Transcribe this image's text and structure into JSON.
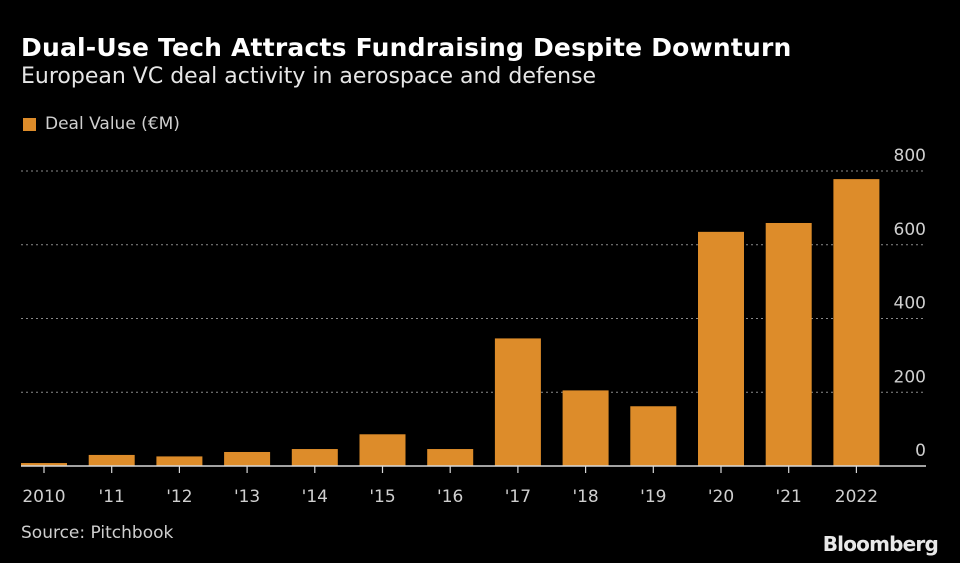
{
  "header": {
    "title": "Dual-Use Tech Attracts Fundraising Despite Downturn",
    "subtitle": "European VC deal activity in aerospace and defense"
  },
  "legend": {
    "label": "Deal Value (€M)",
    "color": "#dd8c2a"
  },
  "footer": {
    "source": "Source: Pitchbook",
    "brand": "Bloomberg"
  },
  "chart_data": {
    "type": "bar",
    "title": "Dual-Use Tech Attracts Fundraising Despite Downturn",
    "subtitle": "European VC deal activity in aerospace and defense",
    "xlabel": "",
    "ylabel": "",
    "categories": [
      "2010",
      "'11",
      "'12",
      "'13",
      "'14",
      "'15",
      "'16",
      "'17",
      "'18",
      "'19",
      "'20",
      "'21",
      "2022"
    ],
    "series": [
      {
        "name": "Deal Value (€M)",
        "color": "#dd8c2a",
        "values": [
          8,
          30,
          26,
          38,
          46,
          86,
          46,
          346,
          205,
          162,
          635,
          659,
          778
        ]
      }
    ],
    "ylim": [
      0,
      800
    ],
    "yticks": [
      0,
      200,
      400,
      600,
      800
    ],
    "y_axis_side": "right",
    "grid": true,
    "legend_position": "top-left"
  }
}
